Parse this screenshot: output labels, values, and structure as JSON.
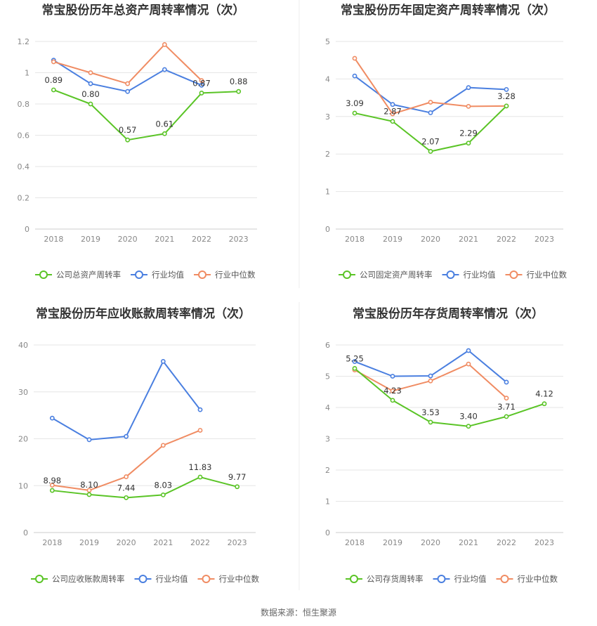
{
  "source_text": "数据来源：恒生聚源",
  "colors": {
    "company": "#5ac426",
    "avg": "#4a7fe0",
    "median": "#f08c63"
  },
  "chart_data": [
    {
      "type": "line",
      "title": "常宝股份历年总资产周转率情况（次）",
      "x": [
        "2018",
        "2019",
        "2020",
        "2021",
        "2022",
        "2023"
      ],
      "ylim": [
        0,
        1.2
      ],
      "yticks": [
        "0",
        "0.2",
        "0.4",
        "0.6",
        "0.8",
        "1",
        "1.2"
      ],
      "series": [
        {
          "name": "公司总资产周转率",
          "values": [
            0.89,
            0.8,
            0.57,
            0.61,
            0.87,
            0.88
          ],
          "labels": [
            "0.89",
            "0.80",
            "0.57",
            "0.61",
            "0.87",
            "0.88"
          ]
        },
        {
          "name": "行业均值",
          "values": [
            1.08,
            0.93,
            0.88,
            1.02,
            0.92,
            null
          ]
        },
        {
          "name": "行业中位数",
          "values": [
            1.07,
            1.0,
            0.93,
            1.18,
            0.95,
            null
          ]
        }
      ]
    },
    {
      "type": "line",
      "title": "常宝股份历年固定资产周转率情况（次）",
      "x": [
        "2018",
        "2019",
        "2020",
        "2021",
        "2022",
        "2023"
      ],
      "ylim": [
        0,
        5
      ],
      "yticks": [
        "0",
        "1",
        "2",
        "3",
        "4",
        "5"
      ],
      "series": [
        {
          "name": "公司固定资产周转率",
          "values": [
            3.09,
            2.87,
            2.07,
            2.29,
            3.28,
            null
          ],
          "labels": [
            "3.09",
            "2.87",
            "2.07",
            "2.29",
            "3.28",
            ""
          ]
        },
        {
          "name": "行业均值",
          "values": [
            4.08,
            3.32,
            3.1,
            3.77,
            3.72,
            null
          ]
        },
        {
          "name": "行业中位数",
          "values": [
            4.55,
            3.07,
            3.38,
            3.27,
            3.28,
            null
          ]
        }
      ]
    },
    {
      "type": "line",
      "title": "常宝股份历年应收账款周转率情况（次）",
      "x": [
        "2018",
        "2019",
        "2020",
        "2021",
        "2022",
        "2023"
      ],
      "ylim": [
        0,
        40
      ],
      "yticks": [
        "0",
        "10",
        "20",
        "30",
        "40"
      ],
      "series": [
        {
          "name": "公司应收账款周转率",
          "values": [
            8.98,
            8.1,
            7.44,
            8.03,
            11.83,
            9.77
          ],
          "labels": [
            "8.98",
            "8.10",
            "7.44",
            "8.03",
            "11.83",
            "9.77"
          ]
        },
        {
          "name": "行业均值",
          "values": [
            24.4,
            19.8,
            20.5,
            36.5,
            26.2,
            null
          ]
        },
        {
          "name": "行业中位数",
          "values": [
            10.1,
            9.0,
            11.9,
            18.6,
            21.8,
            null
          ]
        }
      ]
    },
    {
      "type": "line",
      "title": "常宝股份历年存货周转率情况（次）",
      "x": [
        "2018",
        "2019",
        "2020",
        "2021",
        "2022",
        "2023"
      ],
      "ylim": [
        0,
        6
      ],
      "yticks": [
        "0",
        "1",
        "2",
        "3",
        "4",
        "5",
        "6"
      ],
      "series": [
        {
          "name": "公司存货周转率",
          "values": [
            5.25,
            4.23,
            3.53,
            3.4,
            3.71,
            4.12
          ],
          "labels": [
            "5.25",
            "4.23",
            "3.53",
            "3.40",
            "3.71",
            "4.12"
          ]
        },
        {
          "name": "行业均值",
          "values": [
            5.47,
            5.0,
            5.01,
            5.82,
            4.81,
            null
          ]
        },
        {
          "name": "行业中位数",
          "values": [
            5.2,
            4.53,
            4.85,
            5.39,
            4.3,
            null
          ]
        }
      ]
    }
  ]
}
